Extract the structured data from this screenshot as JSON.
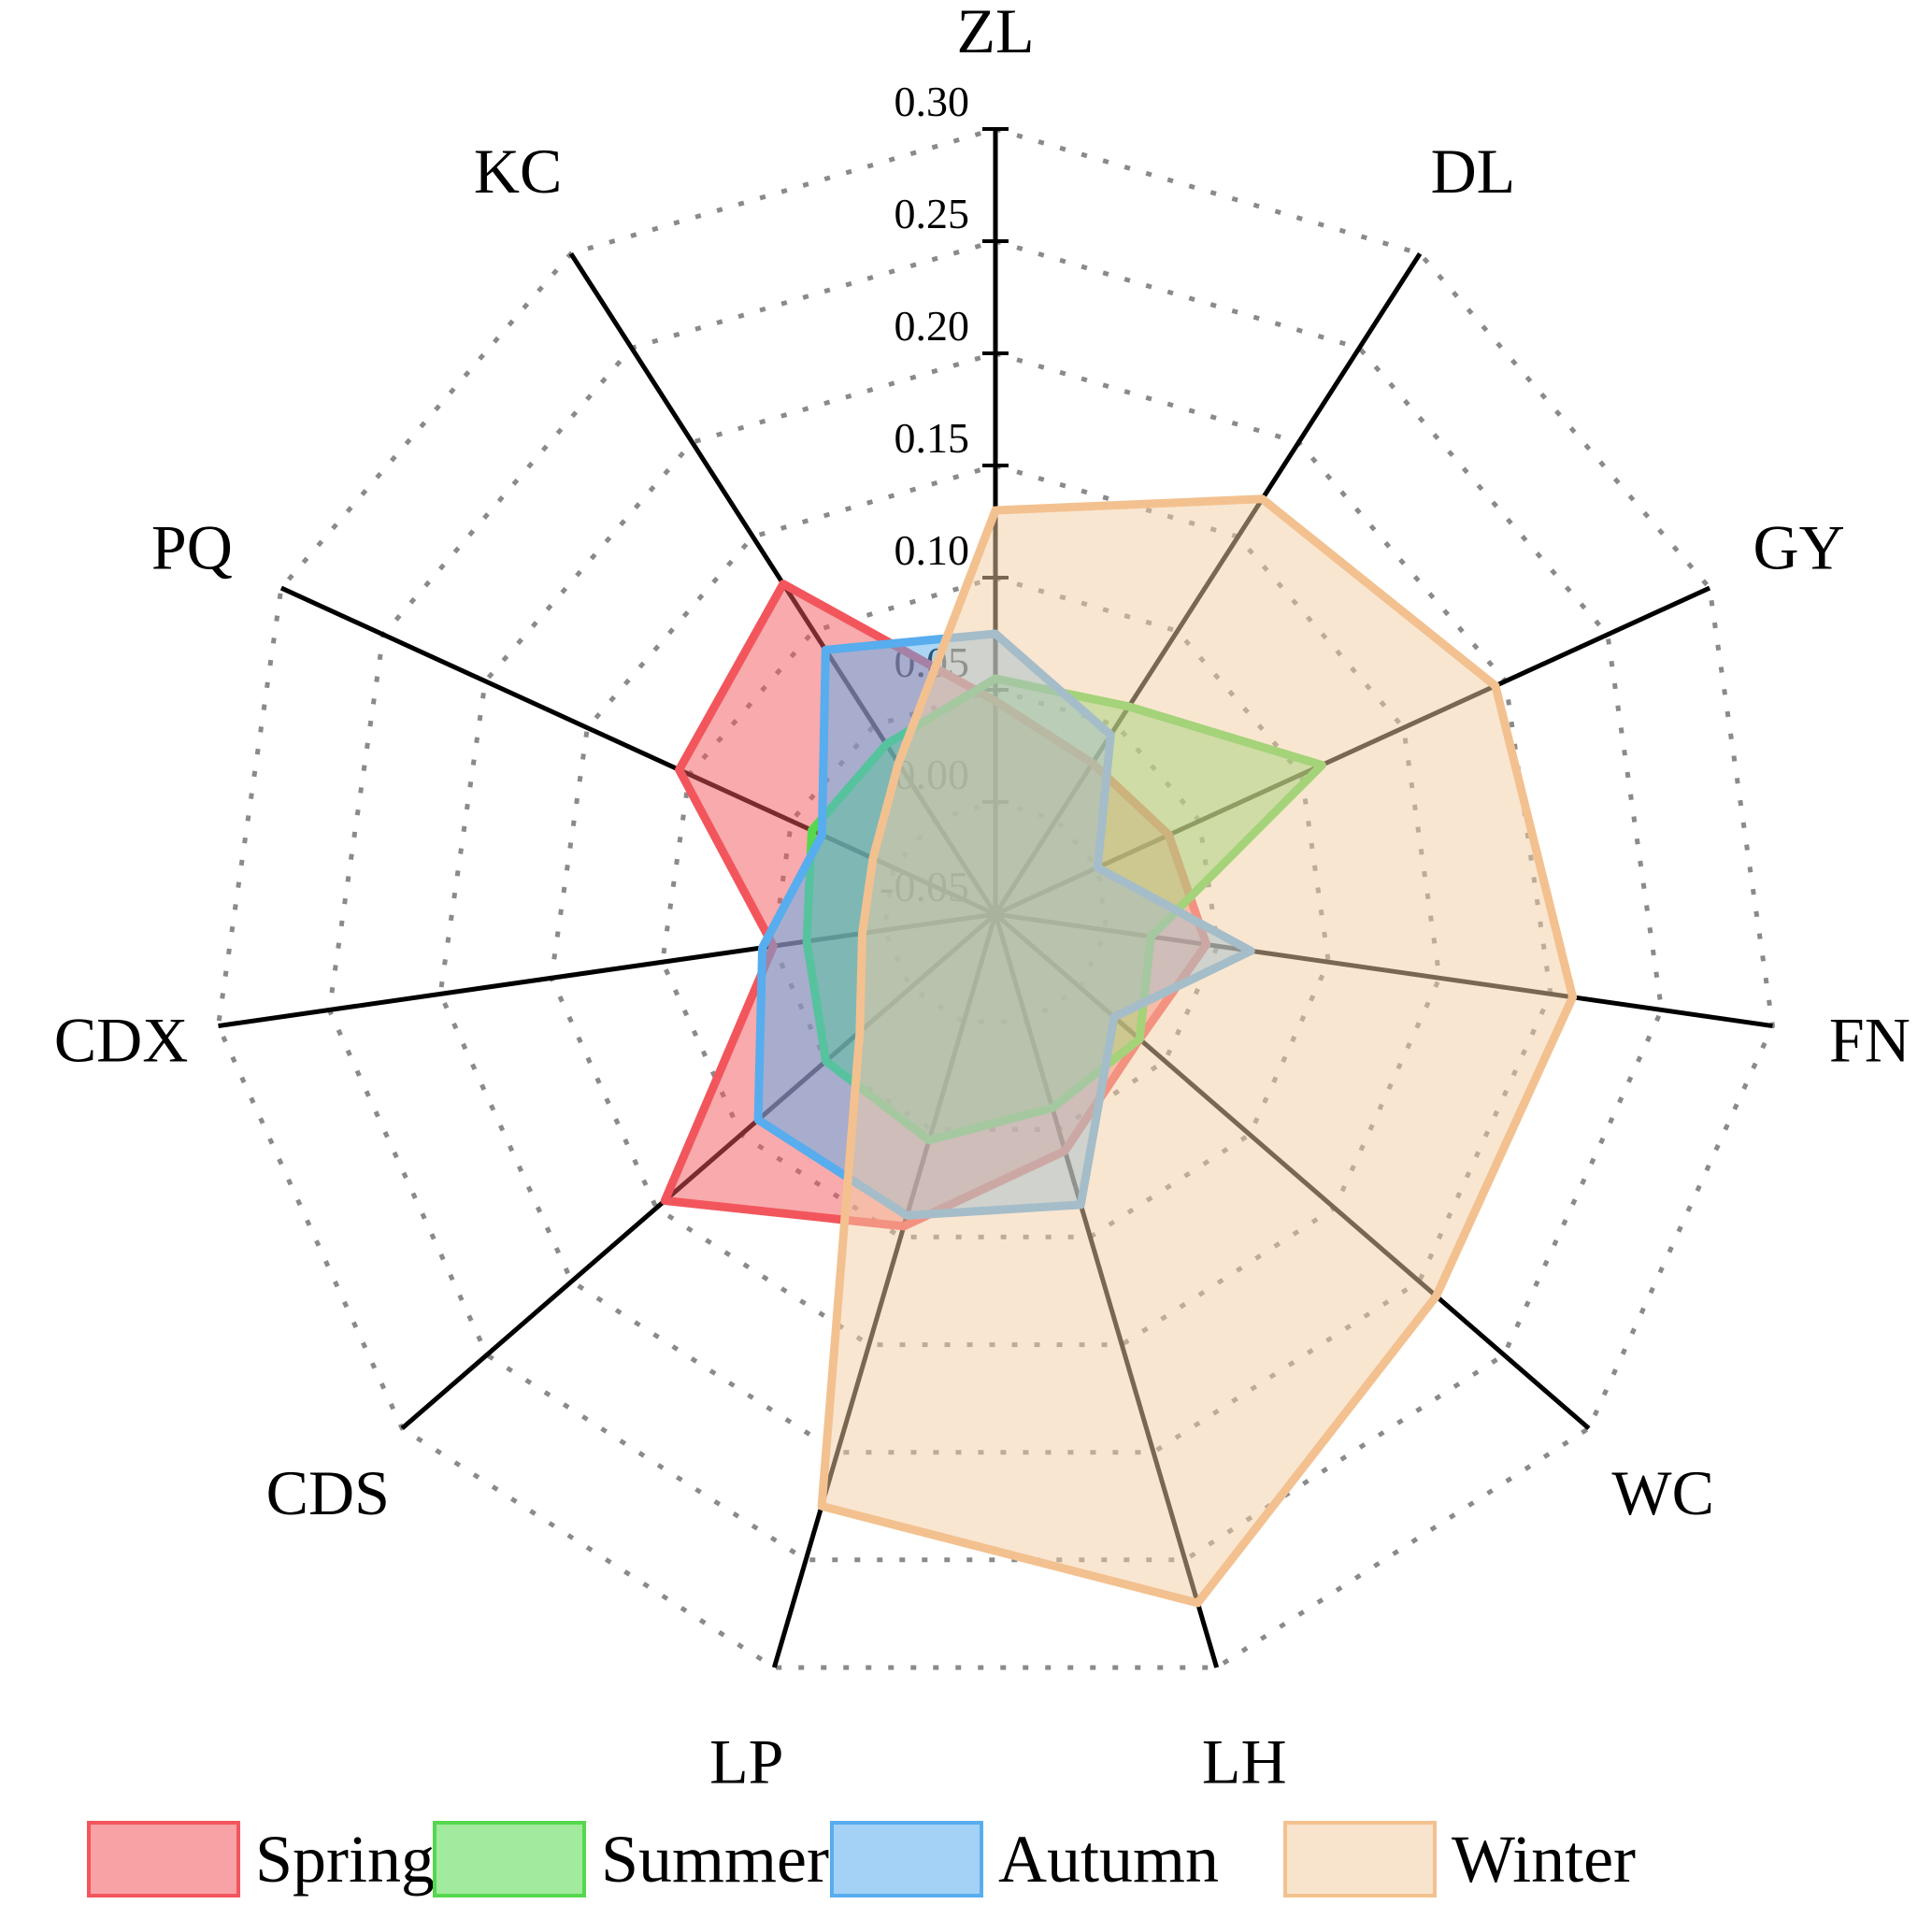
{
  "chart_data": {
    "type": "radar",
    "title": "",
    "categories": [
      "ZL",
      "DL",
      "GY",
      "FN",
      "WC",
      "LH",
      "LP",
      "CDS",
      "CDX",
      "PQ",
      "KC"
    ],
    "category_order": "clockwise-from-top",
    "axis_range": [
      -0.05,
      0.3
    ],
    "tick_step": 0.05,
    "ticks": [
      {
        "label": "0.30",
        "value": 0.3
      },
      {
        "label": "0.25",
        "value": 0.25
      },
      {
        "label": "0.20",
        "value": 0.2
      },
      {
        "label": "0.15",
        "value": 0.15
      },
      {
        "label": "0.10",
        "value": 0.1
      },
      {
        "label": "0.05",
        "value": 0.05
      },
      {
        "label": "0.00",
        "value": 0.0
      },
      {
        "label": "-0.05",
        "value": -0.05
      }
    ],
    "grid": "dotted",
    "legend_position": "bottom",
    "series": [
      {
        "name": "Spring",
        "stroke": "#f2565c",
        "fill": "#f2565c",
        "values": [
          0.045,
          0.03,
          0.035,
          0.045,
          0.035,
          0.06,
          0.095,
          0.145,
          0.05,
          0.105,
          0.125
        ]
      },
      {
        "name": "Summer",
        "stroke": "#55d84e",
        "fill": "#55d84e",
        "values": [
          0.055,
          0.06,
          0.11,
          0.02,
          0.035,
          0.04,
          0.055,
          0.05,
          0.035,
          0.04,
          0.04
        ]
      },
      {
        "name": "Autumn",
        "stroke": "#57adee",
        "fill": "#57adee",
        "values": [
          0.075,
          0.045,
          0.0,
          0.065,
          0.02,
          0.085,
          0.09,
          0.09,
          0.055,
          0.035,
          0.09
        ]
      },
      {
        "name": "Winter",
        "stroke": "#f3c18f",
        "fill": "#f3cda4",
        "values": [
          0.13,
          0.17,
          0.195,
          0.21,
          0.21,
          0.27,
          0.225,
          0.03,
          0.01,
          0.01,
          0.03
        ]
      }
    ],
    "colors": {
      "axis_line": "#000000",
      "grid_line": "#8a8a8a",
      "tick_text": "#000000"
    }
  }
}
